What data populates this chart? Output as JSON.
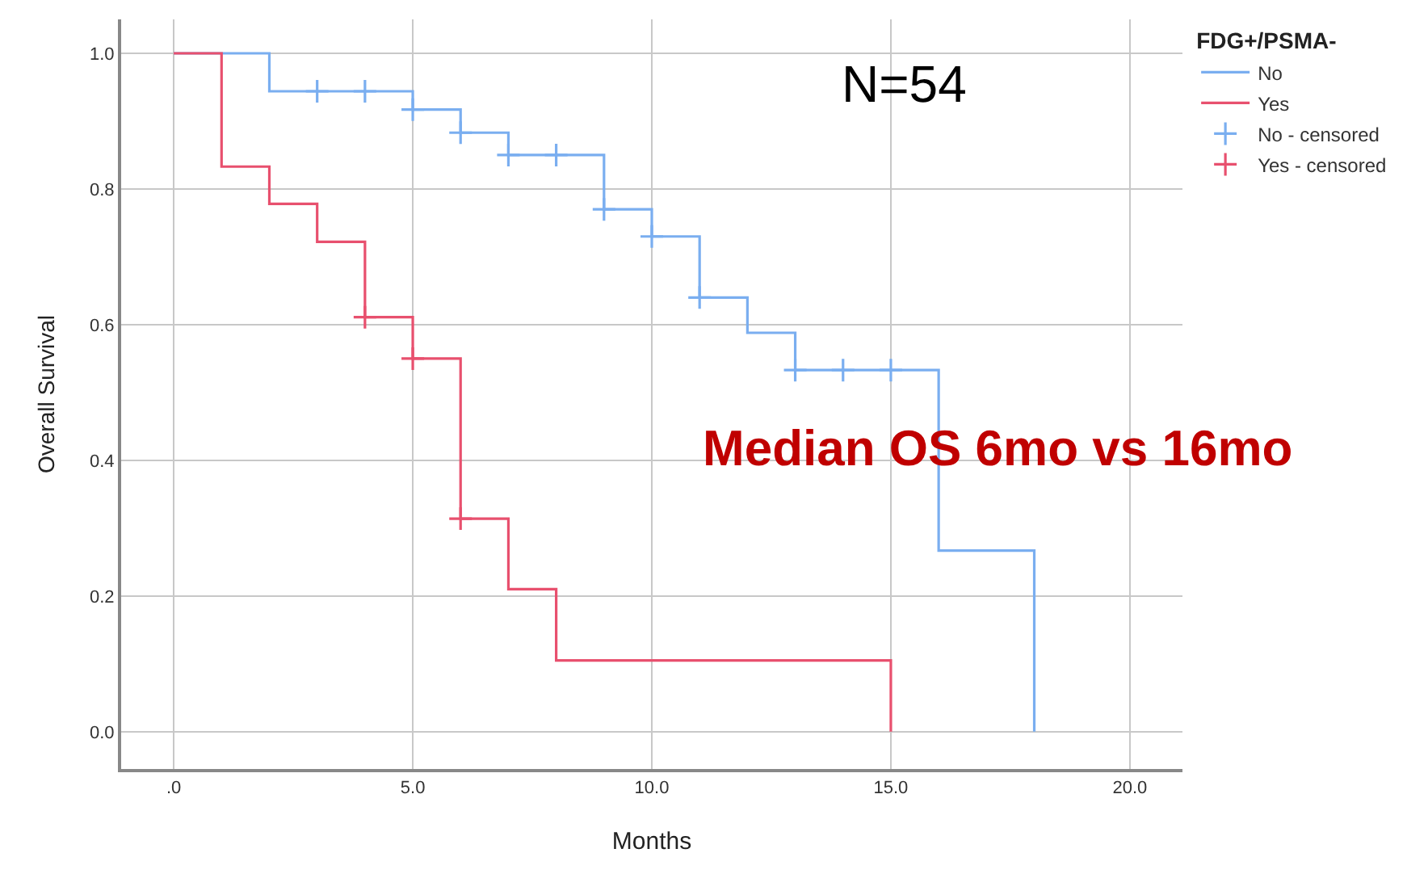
{
  "chart_data": {
    "type": "step",
    "xlabel": "Months",
    "ylabel": "Overall Survival",
    "legend_title": "FDG+/PSMA-",
    "series": [
      {
        "name": "No",
        "color": "#7aaef0",
        "x": [
          0,
          2,
          5,
          6,
          7,
          9,
          10,
          11,
          12,
          13,
          16,
          18
        ],
        "values": [
          1.0,
          0.944,
          0.917,
          0.883,
          0.85,
          0.77,
          0.73,
          0.64,
          0.588,
          0.533,
          0.267,
          0.0
        ]
      },
      {
        "name": "Yes",
        "color": "#e8506e",
        "x": [
          0,
          1,
          2,
          3,
          4,
          5,
          6,
          7,
          8,
          15
        ],
        "values": [
          1.0,
          0.833,
          0.778,
          0.722,
          0.611,
          0.55,
          0.314,
          0.21,
          0.105,
          0.0
        ]
      },
      {
        "name": "No - censored",
        "type": "scatter",
        "marker": "cross",
        "color": "#7aaef0",
        "x": [
          3,
          4,
          5,
          6,
          7,
          8,
          9,
          10,
          11,
          13,
          14,
          15
        ],
        "values": [
          0.944,
          0.944,
          0.917,
          0.883,
          0.85,
          0.85,
          0.77,
          0.73,
          0.64,
          0.533,
          0.533,
          0.533
        ]
      },
      {
        "name": "Yes - censored",
        "type": "scatter",
        "marker": "cross",
        "color": "#e8506e",
        "x": [
          4,
          5,
          6
        ],
        "values": [
          0.611,
          0.55,
          0.314
        ]
      }
    ],
    "xlim": [
      -1.1,
      21.1
    ],
    "xticks": [
      {
        "value": 0,
        "label": ".0"
      },
      {
        "value": 5,
        "label": "5.0"
      },
      {
        "value": 10,
        "label": "10.0"
      },
      {
        "value": 15,
        "label": "15.0"
      },
      {
        "value": 20,
        "label": "20.0"
      }
    ],
    "ylim": [
      -0.055,
      1.05
    ],
    "yticks": [
      {
        "value": 0,
        "label": "0.0"
      },
      {
        "value": 0.2,
        "label": "0.2"
      },
      {
        "value": 0.4,
        "label": "0.4"
      },
      {
        "value": 0.6,
        "label": "0.6"
      },
      {
        "value": 0.8,
        "label": "0.8"
      },
      {
        "value": 1,
        "label": "1.0"
      }
    ],
    "grid": true,
    "legend": "top right",
    "annotations": [
      "N=54",
      "Median OS 6mo vs 16mo"
    ]
  }
}
